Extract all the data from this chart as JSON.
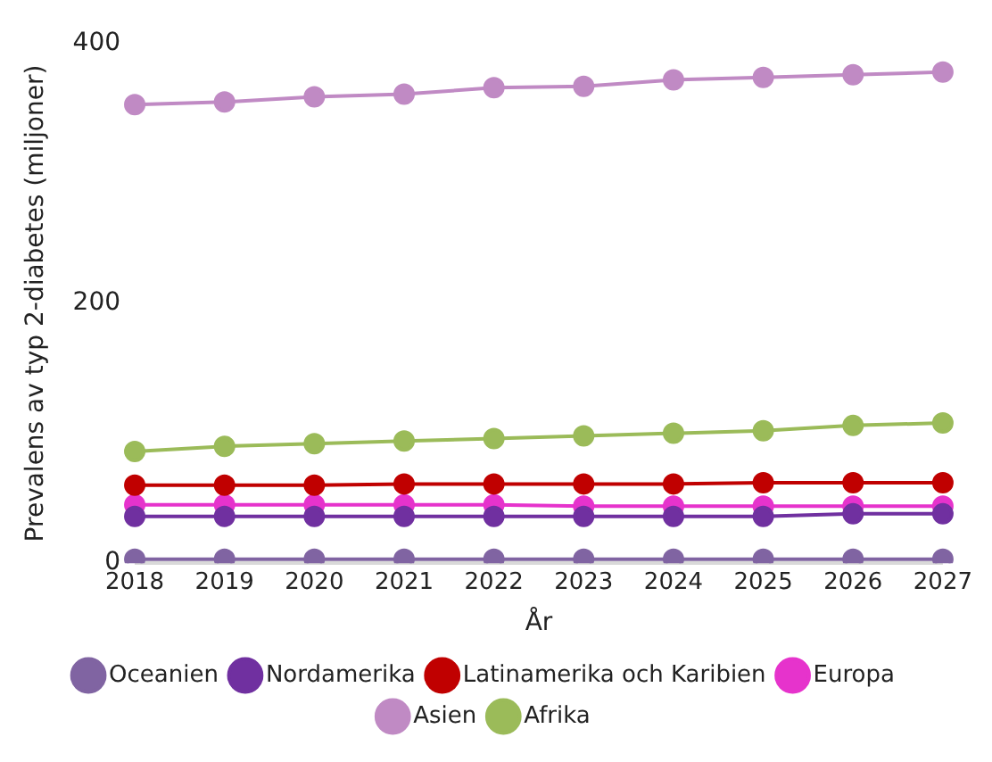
{
  "chart_data": {
    "type": "line",
    "xlabel": "År",
    "ylabel": "Prevalens av typ 2-diabetes (miljoner)",
    "categories": [
      "2018",
      "2019",
      "2020",
      "2021",
      "2022",
      "2023",
      "2024",
      "2025",
      "2026",
      "2027"
    ],
    "ylim": [
      0,
      400
    ],
    "yticks": [
      0,
      200,
      400
    ],
    "grid": false,
    "legend": "bottom",
    "marker": "circle",
    "line_style": "solid",
    "series": [
      {
        "name": "Afrika",
        "color": "#9bbb59",
        "values": [
          86,
          90,
          92,
          94,
          96,
          98,
          100,
          102,
          106,
          108
        ]
      },
      {
        "name": "Asien",
        "color": "#c08ac4",
        "values": [
          353,
          355,
          359,
          361,
          366,
          367,
          372,
          374,
          376,
          378
        ]
      },
      {
        "name": "Europa",
        "color": "#e633cc",
        "values": [
          45,
          45,
          45,
          45,
          45,
          44,
          44,
          44,
          44,
          44
        ]
      },
      {
        "name": "Latinamerika och Karibien",
        "color": "#c00000",
        "values": [
          60,
          60,
          60,
          61,
          61,
          61,
          61,
          62,
          62,
          62
        ]
      },
      {
        "name": "Nordamerika",
        "color": "#7030a0",
        "values": [
          36,
          36,
          36,
          36,
          36,
          36,
          36,
          36,
          38,
          38
        ]
      },
      {
        "name": "Oceanien",
        "color": "#8064a2",
        "values": [
          3,
          3,
          3,
          3,
          3,
          3,
          3,
          3,
          3,
          3
        ]
      }
    ]
  }
}
